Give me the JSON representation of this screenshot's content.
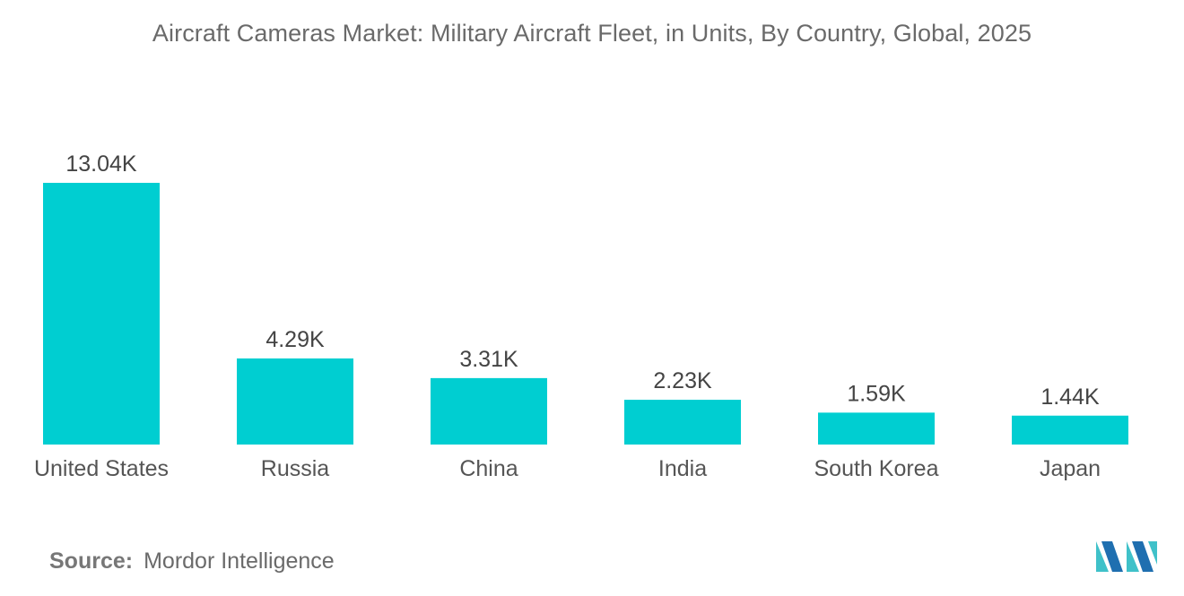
{
  "chart_data": {
    "type": "bar",
    "title": "Aircraft Cameras Market: Military Aircraft Fleet, in Units, By Country, Global, 2025",
    "categories": [
      "United States",
      "Russia",
      "China",
      "India",
      "South Korea",
      "Japan"
    ],
    "values": [
      13.04,
      4.29,
      3.31,
      2.23,
      1.59,
      1.44
    ],
    "value_labels": [
      "13.04K",
      "4.29K",
      "3.31K",
      "2.23K",
      "1.59K",
      "1.44K"
    ],
    "unit_suffix": "K",
    "xlabel": "",
    "ylabel": "",
    "ylim": [
      0,
      13.04
    ],
    "grid": false,
    "legend": "none",
    "bar_color": "#00CED1"
  },
  "source": {
    "label": "Source:",
    "text": "Mordor Intelligence"
  },
  "logo": {
    "icon": "mordor-intelligence-logo-icon",
    "color_dark": "#1f6fb0",
    "color_light": "#3fc1c9"
  }
}
